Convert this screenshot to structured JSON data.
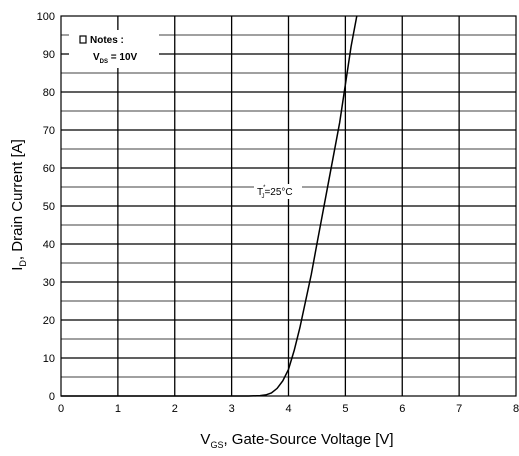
{
  "chart_data": {
    "type": "line",
    "title": "",
    "xlabel_main": "V",
    "xlabel_sub": "GS",
    "xlabel_rest": ", Gate-Source Voltage [V]",
    "ylabel_main": "I",
    "ylabel_sub": "D",
    "ylabel_rest": ", Drain Current [A]",
    "xlim": [
      0,
      8
    ],
    "ylim": [
      0,
      100
    ],
    "x_ticks": [
      0,
      1,
      2,
      3,
      4,
      5,
      6,
      7,
      8
    ],
    "y_ticks": [
      0,
      10,
      20,
      30,
      40,
      50,
      60,
      70,
      80,
      90,
      100
    ],
    "grid": "on",
    "series": [
      {
        "x": [
          0,
          3.3,
          3.5,
          3.6,
          3.7,
          3.8,
          3.9,
          4.0,
          4.1,
          4.2,
          4.3,
          4.4,
          4.5,
          4.6,
          4.7,
          4.8,
          4.9,
          5.0,
          5.1,
          5.2
        ],
        "y": [
          0,
          0,
          0.1,
          0.3,
          0.8,
          2.0,
          4.0,
          7.0,
          12,
          18,
          25,
          32,
          40,
          48,
          56,
          64,
          72,
          82,
          92,
          100
        ]
      }
    ],
    "notes": {
      "title": "Notes :",
      "line_main": "V",
      "line_sub": "DS",
      "line_rest": " = 10V"
    },
    "annotation": {
      "main": "T",
      "sub": "J",
      "rest": "=25°C",
      "star": "*"
    }
  }
}
